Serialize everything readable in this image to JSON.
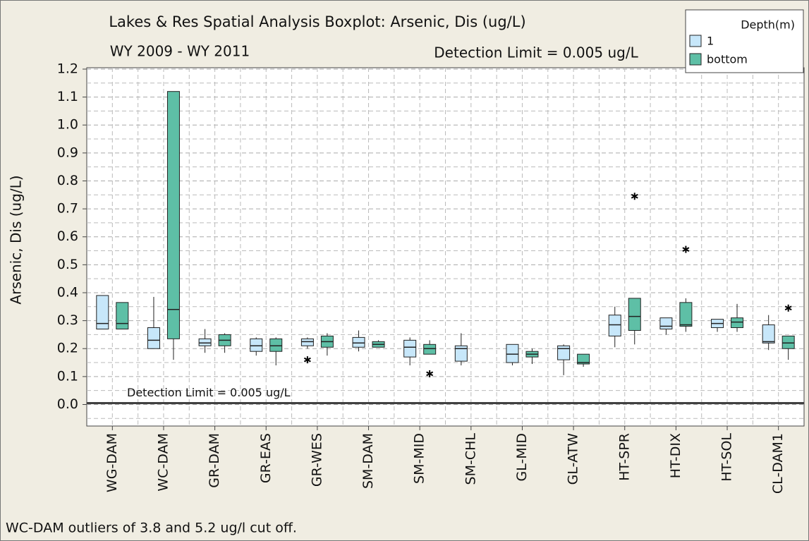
{
  "chart_data": {
    "type": "boxplot",
    "title": "Lakes & Res Spatial Analysis Boxplot: Arsenic, Dis (ug/L)",
    "subtitle": "WY 2009 - WY 2011",
    "annotation": "Detection Limit = 0.005 ug/L",
    "footnote": "WC-DAM outliers of 3.8 and 5.2 ug/l cut off.",
    "y_label": "Arsenic, Dis (ug/L)",
    "legend_title": "Depth(m)",
    "legend": "top-right",
    "grid": true,
    "reference_line": {
      "value": 0.005,
      "label": "Detection Limit  =  0.005 ug/L",
      "color": "#404040"
    },
    "ylim": [
      -0.077,
      1.205
    ],
    "yticks": [
      {
        "value": 0,
        "label": "0.0"
      },
      0.1,
      0.2,
      0.3,
      0.4,
      0.5,
      0.6,
      0.7,
      0.8,
      0.9,
      {
        "value": 1,
        "label": "1.0"
      },
      1.1,
      1.2
    ],
    "minor_yticks": [
      -0.05,
      0.05,
      0.15,
      0.25,
      0.35,
      0.45,
      0.55,
      0.65,
      0.75,
      0.85,
      0.95,
      1.05,
      1.15
    ],
    "categories": [
      "WG-DAM",
      "WC-DAM",
      "GR-DAM",
      "GR-EAS",
      "GR-WES",
      "SM-DAM",
      "SM-MID",
      "SM-CHL",
      "GL-MID",
      "GL-ATW",
      "HT-SPR",
      "HT-DIX",
      "HT-SOL",
      "CL-DAM1"
    ],
    "series": [
      {
        "name": "1",
        "color": "#c7e7fa",
        "boxes": [
          {
            "min": 0.27,
            "q1": 0.27,
            "median": 0.29,
            "q3": 0.39,
            "max": 0.39,
            "outliers": []
          },
          {
            "min": 0.2,
            "q1": 0.2,
            "median": 0.23,
            "q3": 0.275,
            "max": 0.385,
            "outliers": []
          },
          {
            "min": 0.185,
            "q1": 0.21,
            "median": 0.22,
            "q3": 0.235,
            "max": 0.27,
            "outliers": []
          },
          {
            "min": 0.175,
            "q1": 0.19,
            "median": 0.21,
            "q3": 0.235,
            "max": 0.24,
            "outliers": []
          },
          {
            "min": 0.2,
            "q1": 0.21,
            "median": 0.225,
            "q3": 0.235,
            "max": 0.24,
            "outliers": [
              0.16
            ]
          },
          {
            "min": 0.19,
            "q1": 0.205,
            "median": 0.22,
            "q3": 0.24,
            "max": 0.265,
            "outliers": []
          },
          {
            "min": 0.14,
            "q1": 0.17,
            "median": 0.205,
            "q3": 0.23,
            "max": 0.24,
            "outliers": []
          },
          {
            "min": 0.14,
            "q1": 0.155,
            "median": 0.2,
            "q3": 0.21,
            "max": 0.255,
            "outliers": []
          },
          {
            "min": 0.14,
            "q1": 0.15,
            "median": 0.18,
            "q3": 0.215,
            "max": 0.215,
            "outliers": []
          },
          {
            "min": 0.105,
            "q1": 0.16,
            "median": 0.2,
            "q3": 0.21,
            "max": 0.215,
            "outliers": []
          },
          {
            "min": 0.205,
            "q1": 0.245,
            "median": 0.285,
            "q3": 0.32,
            "max": 0.35,
            "outliers": []
          },
          {
            "min": 0.25,
            "q1": 0.27,
            "median": 0.28,
            "q3": 0.31,
            "max": 0.31,
            "outliers": []
          },
          {
            "min": 0.26,
            "q1": 0.275,
            "median": 0.29,
            "q3": 0.305,
            "max": 0.305,
            "outliers": []
          },
          {
            "min": 0.195,
            "q1": 0.22,
            "median": 0.225,
            "q3": 0.285,
            "max": 0.32,
            "outliers": []
          }
        ]
      },
      {
        "name": "bottom",
        "color": "#5ebfa6",
        "boxes": [
          {
            "min": 0.27,
            "q1": 0.27,
            "median": 0.29,
            "q3": 0.365,
            "max": 0.365,
            "outliers": []
          },
          {
            "min": 0.16,
            "q1": 0.235,
            "median": 0.34,
            "q3": 1.12,
            "max": 1.12,
            "outliers": []
          },
          {
            "min": 0.185,
            "q1": 0.21,
            "median": 0.23,
            "q3": 0.25,
            "max": 0.255,
            "outliers": []
          },
          {
            "min": 0.14,
            "q1": 0.19,
            "median": 0.21,
            "q3": 0.235,
            "max": 0.24,
            "outliers": []
          },
          {
            "min": 0.175,
            "q1": 0.205,
            "median": 0.225,
            "q3": 0.245,
            "max": 0.255,
            "outliers": []
          },
          {
            "min": 0.205,
            "q1": 0.205,
            "median": 0.215,
            "q3": 0.225,
            "max": 0.23,
            "outliers": []
          },
          {
            "min": 0.18,
            "q1": 0.18,
            "median": 0.2,
            "q3": 0.215,
            "max": 0.23,
            "outliers": [
              0.11
            ]
          },
          null,
          {
            "min": 0.145,
            "q1": 0.17,
            "median": 0.18,
            "q3": 0.19,
            "max": 0.2,
            "outliers": []
          },
          {
            "min": 0.135,
            "q1": 0.145,
            "median": 0.15,
            "q3": 0.18,
            "max": 0.18,
            "outliers": []
          },
          {
            "min": 0.215,
            "q1": 0.265,
            "median": 0.315,
            "q3": 0.38,
            "max": 0.38,
            "outliers": [
              0.745
            ]
          },
          {
            "min": 0.26,
            "q1": 0.28,
            "median": 0.285,
            "q3": 0.365,
            "max": 0.38,
            "outliers": [
              0.555
            ]
          },
          {
            "min": 0.26,
            "q1": 0.275,
            "median": 0.295,
            "q3": 0.31,
            "max": 0.36,
            "outliers": []
          },
          {
            "min": 0.16,
            "q1": 0.2,
            "median": 0.22,
            "q3": 0.245,
            "max": 0.245,
            "outliers": [
              0.345
            ]
          }
        ]
      }
    ]
  }
}
